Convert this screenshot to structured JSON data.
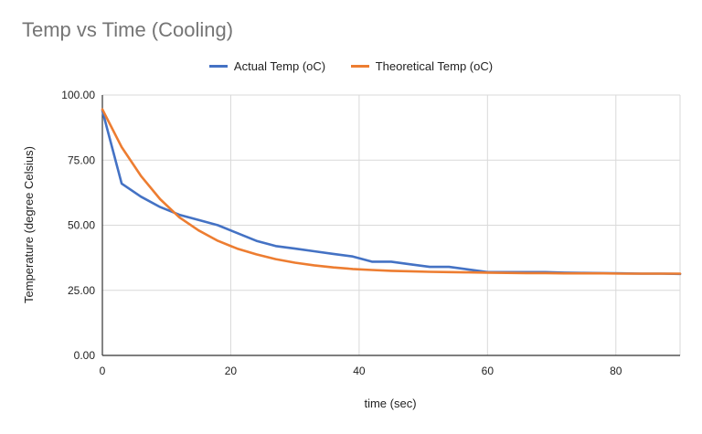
{
  "chart_data": {
    "type": "line",
    "title": "Temp vs Time (Cooling)",
    "xlabel": "time (sec)",
    "ylabel": "Temperature (degree Celsius)",
    "xlim": [
      0,
      90
    ],
    "ylim": [
      0,
      100
    ],
    "x_ticks": [
      0,
      20,
      40,
      60,
      80
    ],
    "y_ticks": [
      "0.00",
      "25.00",
      "50.00",
      "75.00",
      "100.00"
    ],
    "grid": true,
    "legend_position": "top",
    "series": [
      {
        "name": "Actual Temp (oC)",
        "color": "#4472C4",
        "x": [
          0,
          3,
          6,
          9,
          12,
          15,
          18,
          21,
          24,
          27,
          30,
          33,
          36,
          39,
          42,
          45,
          48,
          51,
          54,
          57,
          60,
          63,
          66,
          69,
          72,
          75,
          78,
          81,
          84,
          87,
          90
        ],
        "y": [
          94,
          66,
          61,
          57,
          54,
          52,
          50,
          47,
          44,
          42,
          41,
          40,
          39,
          38,
          36,
          36,
          35,
          34,
          34,
          33,
          32,
          32,
          32,
          32,
          31.8,
          31.7,
          31.6,
          31.5,
          31.4,
          31.4,
          31.3
        ]
      },
      {
        "name": "Theoretical Temp (oC)",
        "color": "#ED7D31",
        "x": [
          0,
          3,
          6,
          9,
          12,
          15,
          18,
          21,
          24,
          27,
          30,
          33,
          36,
          39,
          42,
          45,
          48,
          51,
          54,
          57,
          60,
          63,
          66,
          69,
          72,
          75,
          78,
          81,
          84,
          87,
          90
        ],
        "y": [
          94.5,
          80,
          69,
          60,
          53,
          48,
          44,
          41,
          38.8,
          37,
          35.6,
          34.6,
          33.8,
          33.2,
          32.8,
          32.5,
          32.3,
          32.1,
          32,
          31.9,
          31.8,
          31.7,
          31.6,
          31.6,
          31.5,
          31.5,
          31.5,
          31.4,
          31.4,
          31.4,
          31.4
        ]
      }
    ]
  }
}
